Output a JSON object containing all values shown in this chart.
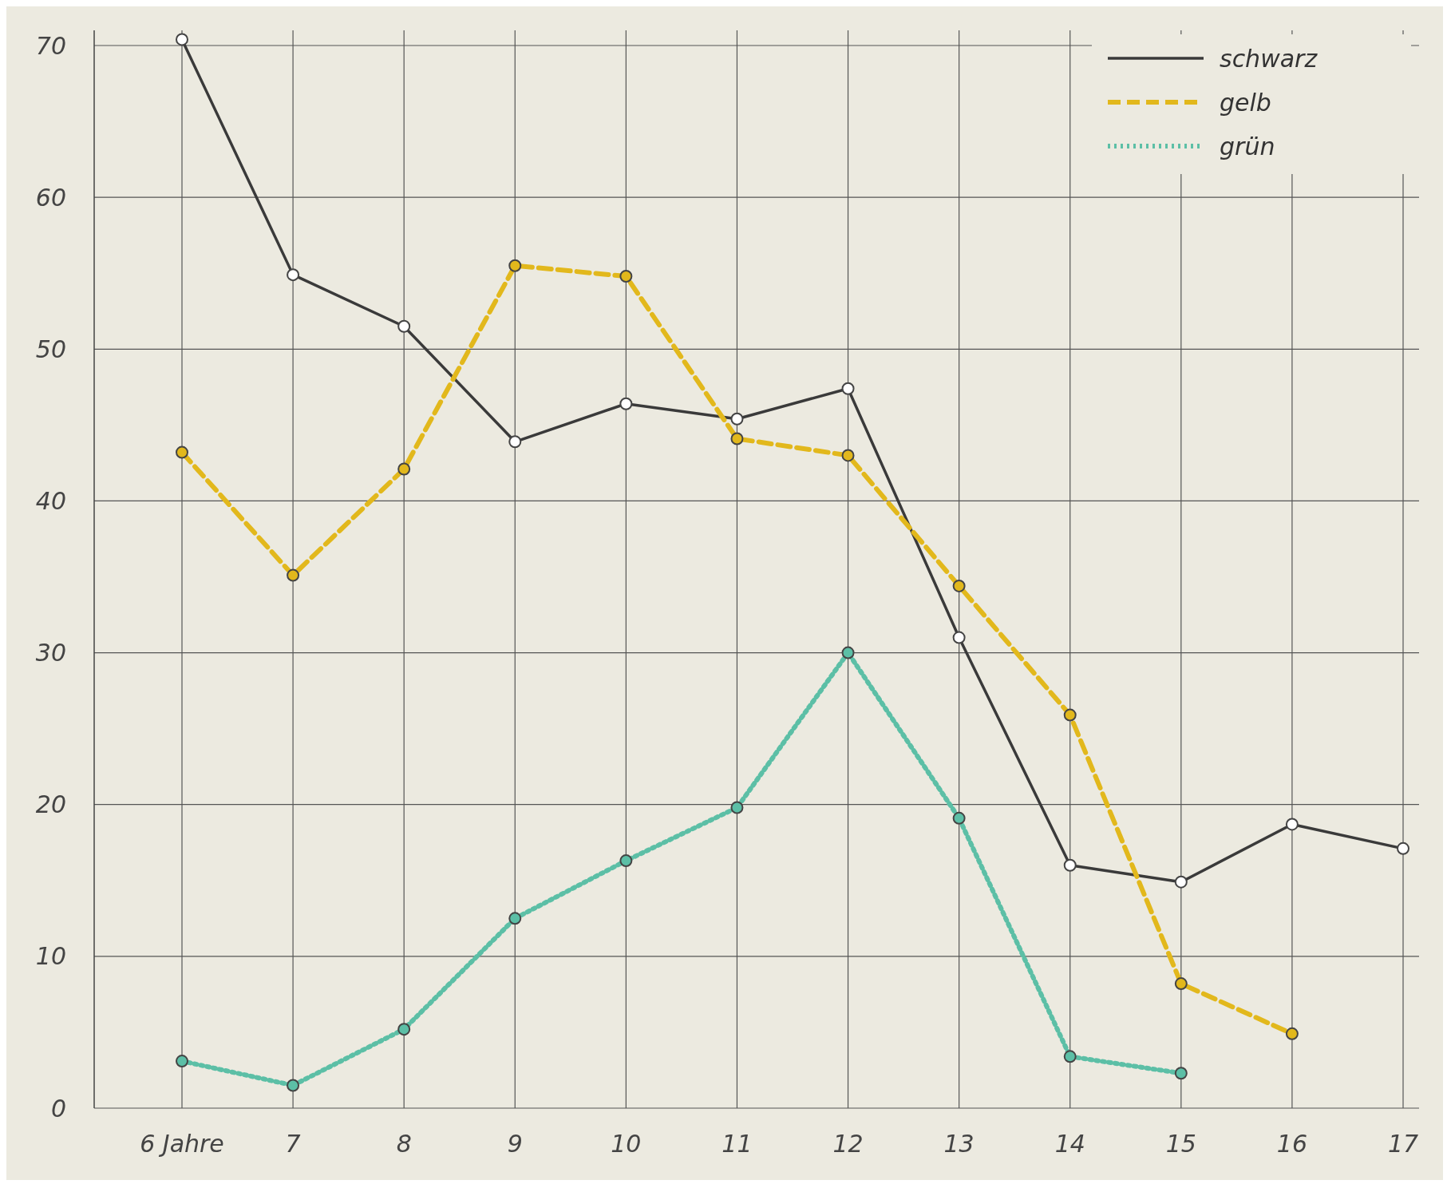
{
  "chart_data": {
    "type": "line",
    "categories": [
      "6 Jahre",
      "7",
      "8",
      "9",
      "10",
      "11",
      "12",
      "13",
      "14",
      "15",
      "16",
      "17"
    ],
    "series": [
      {
        "name": "schwarz",
        "color": "#3a3a3a",
        "line_style": "solid",
        "values": [
          70.4,
          54.9,
          51.5,
          43.9,
          46.4,
          45.4,
          47.4,
          31.0,
          16.0,
          14.9,
          18.7,
          17.1
        ]
      },
      {
        "name": "gelb",
        "color": "#e2b81c",
        "line_style": "dashed",
        "values": [
          43.2,
          35.1,
          42.1,
          55.5,
          54.8,
          44.1,
          43.0,
          34.4,
          25.9,
          8.2,
          4.9,
          null
        ]
      },
      {
        "name": "grün",
        "color": "#5cbfa6",
        "line_style": "dotted",
        "values": [
          3.1,
          1.5,
          5.2,
          12.5,
          16.3,
          19.8,
          30.0,
          19.1,
          3.4,
          2.3,
          null,
          null
        ]
      }
    ],
    "ylim": [
      0,
      71
    ],
    "yticks": [
      0,
      10,
      20,
      30,
      40,
      50,
      60,
      70
    ],
    "grid": true,
    "legend": "top right",
    "marker": "circle"
  }
}
